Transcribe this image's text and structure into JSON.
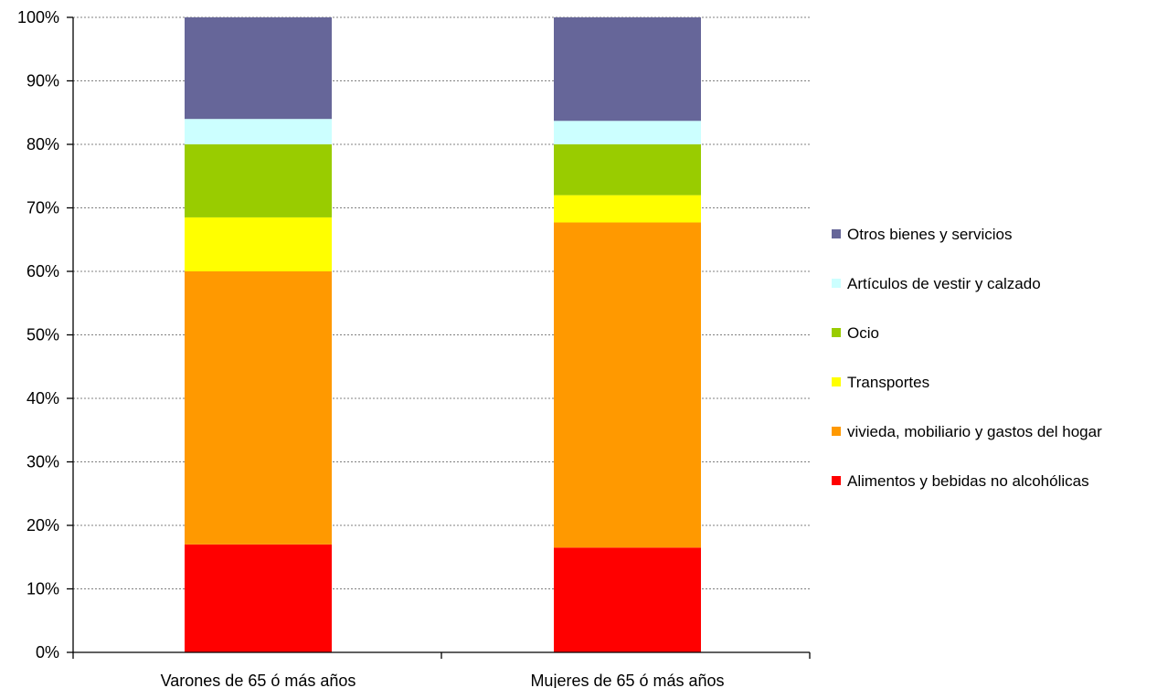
{
  "chart_data": {
    "type": "bar",
    "stacked": true,
    "percent_stacked": true,
    "categories": [
      "Varones de 65 ó más años",
      "Mujeres de 65 ó más años"
    ],
    "series": [
      {
        "name": "Alimentos y bebidas no alcohólicas",
        "values": [
          17.0,
          16.5
        ],
        "color": "#ff0000"
      },
      {
        "name": "vivieda, mobiliario y gastos del hogar",
        "values": [
          43.0,
          51.2
        ],
        "color": "#ff9900"
      },
      {
        "name": "Transportes",
        "values": [
          8.5,
          4.3
        ],
        "color": "#ffff00"
      },
      {
        "name": "Ocio",
        "values": [
          11.5,
          8.0
        ],
        "color": "#99cc00"
      },
      {
        "name": "Artículos de vestir y calzado",
        "values": [
          4.0,
          3.7
        ],
        "color": "#ccffff"
      },
      {
        "name": "Otros bienes y servicios",
        "values": [
          16.0,
          16.3
        ],
        "color": "#666699"
      }
    ],
    "ylim": [
      0,
      100
    ],
    "yticks": [
      "0%",
      "10%",
      "20%",
      "30%",
      "40%",
      "50%",
      "60%",
      "70%",
      "80%",
      "90%",
      "100%"
    ],
    "grid": true,
    "legend_position": "right",
    "title": "",
    "xlabel": "",
    "ylabel": ""
  }
}
